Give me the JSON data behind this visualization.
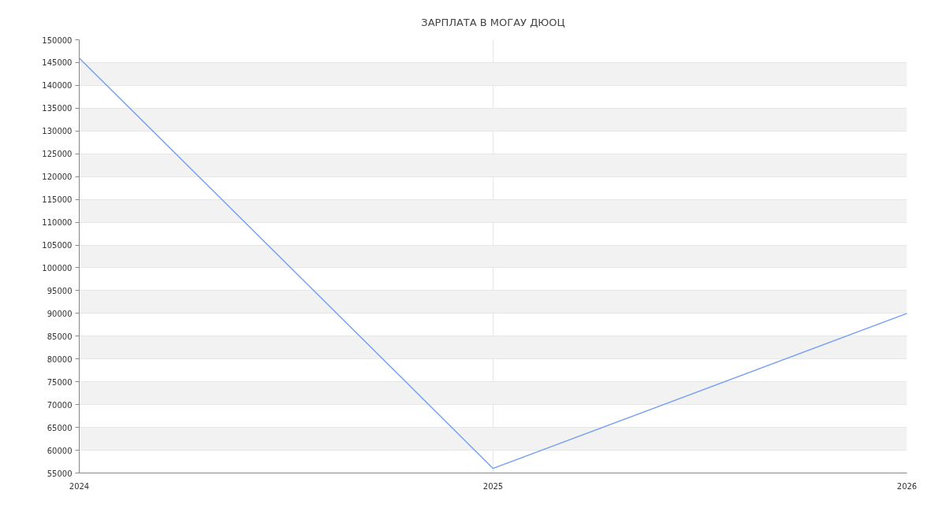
{
  "chart_data": {
    "type": "line",
    "title": "ЗАРПЛАТА В МОГАУ ДЮОЦ",
    "x": [
      2024,
      2025,
      2026
    ],
    "series": [
      {
        "color": "#729ef5",
        "values": [
          146000,
          56000,
          90000
        ]
      }
    ],
    "xlim": [
      2024,
      2026
    ],
    "xticks": [
      2024,
      2025,
      2026
    ],
    "ylim": [
      55000,
      150000
    ],
    "yticks": [
      55000,
      60000,
      65000,
      70000,
      75000,
      80000,
      85000,
      90000,
      95000,
      100000,
      105000,
      110000,
      115000,
      120000,
      125000,
      130000,
      135000,
      140000,
      145000,
      150000
    ],
    "grid": true
  }
}
